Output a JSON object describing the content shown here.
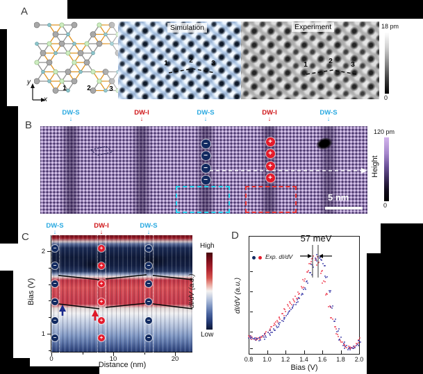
{
  "panels": {
    "A": {
      "label": "A",
      "site_labels": [
        "1",
        "2",
        "3"
      ],
      "axis": {
        "x": "x",
        "y": "y"
      },
      "simulation_title": "Simulation",
      "experiment_title": "Experiment",
      "colorbar": {
        "max": "18 pm",
        "min": "0"
      }
    },
    "B": {
      "label": "B",
      "dw_labels": [
        {
          "text": "DW-S",
          "type": "S"
        },
        {
          "text": "DW-I",
          "type": "I"
        },
        {
          "text": "DW-S",
          "type": "S"
        },
        {
          "text": "DW-I",
          "type": "I"
        },
        {
          "text": "DW-S",
          "type": "S"
        }
      ],
      "scale_bar": "5 nm",
      "colorbar": {
        "max": "120 pm",
        "min": "0",
        "title": "Height"
      }
    },
    "C": {
      "label": "C",
      "dw_labels": [
        {
          "text": "DW-S",
          "type": "S"
        },
        {
          "text": "DW-I",
          "type": "I"
        },
        {
          "text": "DW-S",
          "type": "S"
        }
      ],
      "xlabel": "Distance (nm)",
      "ylabel": "Bias (V)",
      "colorbar": {
        "max": "High",
        "min": "Low",
        "title": "dI/dV (a.u.)"
      }
    },
    "D": {
      "label": "D",
      "annotation": "57 meV",
      "legend": "Exp. dI/dV",
      "xlabel": "Bias (V)",
      "ylabel": "dI/dV (a.u.)"
    }
  },
  "symbols": {
    "arrow_down": "↓",
    "minus": "−",
    "plus": "+"
  },
  "colors": {
    "dw_s": "#29a9e1",
    "dw_i": "#cf1518",
    "charge_minus": "#122a60",
    "charge_plus": "#e51b2b",
    "cyan_box": "#25d7f2",
    "red_box": "#ea3636",
    "scan_purple": "#8f77ae",
    "curve_red": "#ee4054",
    "curve_blue": "#3c3ca8"
  },
  "chart_data": [
    {
      "type": "heatmap",
      "panel": "C",
      "xlabel": "Distance (nm)",
      "ylabel": "Bias (V)",
      "x_range": [
        0,
        23
      ],
      "y_range": [
        0.77,
        2.19
      ],
      "xticks": [
        0,
        10,
        20
      ],
      "yticks": [
        2,
        1
      ],
      "colorbar": {
        "max": "High",
        "min": "Low",
        "title": "dI/dV (a.u.)"
      },
      "domain_walls": [
        {
          "name": "DW-S",
          "x_nm": 0.6,
          "charge": "−"
        },
        {
          "name": "DW-I",
          "x_nm": 8.1,
          "charge": "+"
        },
        {
          "name": "DW-S",
          "x_nm": 15.8,
          "charge": "−"
        }
      ],
      "high_intensity_band_V": [
        1.45,
        1.78
      ]
    },
    {
      "type": "scatter",
      "panel": "D",
      "xlabel": "Bias (V)",
      "ylabel": "dI/dV (a.u.)",
      "xticks": [
        0.8,
        1.0,
        1.2,
        1.4,
        1.6,
        1.8,
        2.0
      ],
      "peak_separation": "57 meV",
      "x": [
        0.8,
        0.83,
        0.86,
        0.89,
        0.92,
        0.95,
        0.98,
        1.01,
        1.04,
        1.07,
        1.1,
        1.13,
        1.16,
        1.19,
        1.22,
        1.25,
        1.28,
        1.31,
        1.34,
        1.37,
        1.4,
        1.43,
        1.46,
        1.49,
        1.52,
        1.55,
        1.58,
        1.61,
        1.64,
        1.67,
        1.7,
        1.73,
        1.76,
        1.79,
        1.82,
        1.85,
        1.88,
        1.91,
        1.94,
        1.97,
        2.0
      ],
      "series": [
        {
          "name": "red spectrum",
          "color": "#ee4054",
          "peak_V": 1.49,
          "values": [
            0.17,
            0.15,
            0.14,
            0.14,
            0.15,
            0.17,
            0.19,
            0.21,
            0.24,
            0.27,
            0.3,
            0.33,
            0.37,
            0.41,
            0.45,
            0.48,
            0.51,
            0.54,
            0.58,
            0.64,
            0.71,
            0.79,
            0.87,
            0.92,
            0.91,
            0.86,
            0.78,
            0.68,
            0.56,
            0.44,
            0.33,
            0.24,
            0.17,
            0.12,
            0.09,
            0.07,
            0.06,
            0.06,
            0.07,
            0.1,
            0.14
          ]
        },
        {
          "name": "blue spectrum",
          "color": "#3c3ca8",
          "peak_V": 1.55,
          "values": [
            0.15,
            0.14,
            0.13,
            0.13,
            0.14,
            0.15,
            0.17,
            0.19,
            0.21,
            0.23,
            0.26,
            0.29,
            0.32,
            0.35,
            0.39,
            0.42,
            0.45,
            0.48,
            0.52,
            0.56,
            0.61,
            0.68,
            0.76,
            0.84,
            0.9,
            0.93,
            0.91,
            0.85,
            0.74,
            0.6,
            0.45,
            0.32,
            0.22,
            0.14,
            0.09,
            0.06,
            0.04,
            0.04,
            0.05,
            0.07,
            0.11
          ]
        }
      ]
    }
  ]
}
